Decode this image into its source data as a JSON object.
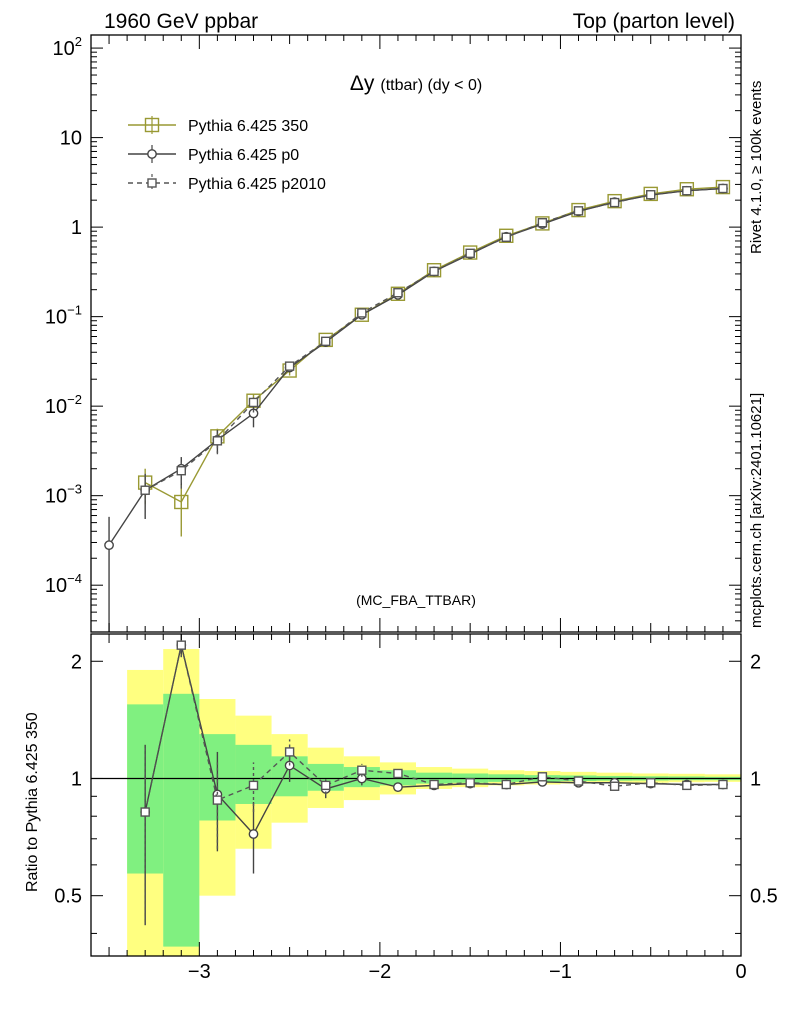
{
  "header": {
    "left": "1960 GeV ppbar",
    "right": "Top (parton level)"
  },
  "side_labels": {
    "rivet": "Rivet 4.1.0, ≥ 100k events",
    "mcplots": "mcplots.cern.ch [arXiv:2401.10621]"
  },
  "chart_data": [
    {
      "type": "line",
      "panel": "main",
      "title_symbol": "Δy",
      "title_rest": "(ttbar) (dy < 0)",
      "watermark": "(MC_FBA_TTBAR)",
      "yscale": "log",
      "xlim": [
        -3.6,
        0.0
      ],
      "ylim": [
        3e-05,
        140
      ],
      "y_ticks": [
        {
          "label": "10",
          "sup": "2"
        },
        {
          "label": "10",
          "sup": ""
        },
        {
          "label": "1",
          "sup": ""
        },
        {
          "label": "10",
          "sup": "−1"
        },
        {
          "label": "10",
          "sup": "−2"
        },
        {
          "label": "10",
          "sup": "−3"
        },
        {
          "label": "10",
          "sup": "−4"
        }
      ],
      "y_tick_values": [
        100,
        10,
        1,
        0.1,
        0.01,
        0.001,
        0.0001
      ],
      "legend_position": "top-left",
      "series": [
        {
          "name": "Pythia 6.425 350",
          "color": "#999933",
          "marker": "square-large",
          "dash": "solid",
          "x": [
            -3.3,
            -3.1,
            -2.9,
            -2.7,
            -2.5,
            -2.3,
            -2.1,
            -1.9,
            -1.7,
            -1.5,
            -1.3,
            -1.1,
            -0.9,
            -0.7,
            -0.5,
            -0.3,
            -0.1
          ],
          "y": [
            0.0014,
            0.00085,
            0.0046,
            0.0115,
            0.025,
            0.055,
            0.105,
            0.18,
            0.33,
            0.52,
            0.8,
            1.1,
            1.55,
            1.95,
            2.35,
            2.65,
            2.8
          ],
          "err": [
            0.0006,
            0.0005,
            0.001,
            0.002,
            0.003,
            0.004,
            0.005,
            0.006,
            0.008,
            0.01,
            0.012,
            0.014,
            0.016,
            0.018,
            0.02,
            0.022,
            0.024
          ]
        },
        {
          "name": "Pythia 6.425 p0",
          "color": "#444444",
          "marker": "circle",
          "dash": "solid",
          "x": [
            -3.5,
            -3.3,
            -3.1,
            -2.9,
            -2.7,
            -2.5,
            -2.3,
            -2.1,
            -1.9,
            -1.7,
            -1.5,
            -1.3,
            -1.1,
            -0.9,
            -0.7,
            -0.5,
            -0.3,
            -0.1
          ],
          "y": [
            0.00028,
            0.00115,
            0.002,
            0.0042,
            0.0083,
            0.027,
            0.052,
            0.105,
            0.175,
            0.32,
            0.5,
            0.78,
            1.08,
            1.5,
            1.9,
            2.28,
            2.55,
            2.7
          ],
          "err": [
            0.0003,
            0.0006,
            0.0007,
            0.0012,
            0.0025,
            0.003,
            0.004,
            0.005,
            0.006,
            0.008,
            0.01,
            0.012,
            0.014,
            0.016,
            0.018,
            0.02,
            0.022,
            0.024
          ]
        },
        {
          "name": "Pythia 6.425 p2010",
          "color": "#555555",
          "marker": "square-small",
          "dash": "dashed",
          "x": [
            -3.3,
            -3.1,
            -2.9,
            -2.7,
            -2.5,
            -2.3,
            -2.1,
            -1.9,
            -1.7,
            -1.5,
            -1.3,
            -1.1,
            -0.9,
            -0.7,
            -0.5,
            -0.3,
            -0.1
          ],
          "y": [
            0.00115,
            0.0019,
            0.0041,
            0.011,
            0.028,
            0.053,
            0.11,
            0.185,
            0.32,
            0.51,
            0.77,
            1.12,
            1.52,
            1.88,
            2.3,
            2.55,
            2.7
          ],
          "err": [
            0.0006,
            0.0007,
            0.0012,
            0.0025,
            0.003,
            0.004,
            0.005,
            0.006,
            0.008,
            0.01,
            0.012,
            0.014,
            0.016,
            0.018,
            0.02,
            0.022,
            0.024
          ]
        }
      ]
    },
    {
      "type": "line",
      "panel": "ratio",
      "ylabel": "Ratio to Pythia 6.425 350",
      "yscale": "log",
      "xlim": [
        -3.6,
        0.0
      ],
      "ylim": [
        0.35,
        2.35
      ],
      "y_ticks": [
        "2",
        "1",
        "0.5"
      ],
      "y_tick_values": [
        2,
        1,
        0.5
      ],
      "x_ticks": [
        "−3",
        "−2",
        "−1",
        "0"
      ],
      "x_tick_values": [
        -3,
        -2,
        -1,
        0
      ],
      "bands": {
        "x_lo": [
          -3.4,
          -3.2,
          -3.0,
          -2.8,
          -2.6,
          -2.4,
          -2.2,
          -2.0,
          -1.8,
          -1.6,
          -1.4,
          -1.2,
          -1.0,
          -0.8,
          -0.6,
          -0.4,
          -0.2
        ],
        "x_hi": [
          -3.2,
          -3.0,
          -2.8,
          -2.6,
          -2.4,
          -2.2,
          -2.0,
          -1.8,
          -1.6,
          -1.4,
          -1.2,
          -1.0,
          -0.8,
          -0.6,
          -0.4,
          -0.2,
          0.0
        ],
        "yellow_lo": [
          0.2,
          0.2,
          0.5,
          0.66,
          0.77,
          0.84,
          0.88,
          0.91,
          0.94,
          0.95,
          0.96,
          0.965,
          0.97,
          0.975,
          0.975,
          0.978,
          0.98
        ],
        "yellow_hi": [
          1.9,
          2.15,
          1.6,
          1.45,
          1.3,
          1.2,
          1.14,
          1.1,
          1.07,
          1.06,
          1.05,
          1.045,
          1.04,
          1.035,
          1.03,
          1.028,
          1.025
        ],
        "green_lo": [
          0.57,
          0.37,
          0.78,
          0.86,
          0.9,
          0.93,
          0.95,
          0.96,
          0.97,
          0.975,
          0.98,
          0.982,
          0.985,
          0.987,
          0.988,
          0.99,
          0.99
        ],
        "green_hi": [
          1.55,
          1.65,
          1.3,
          1.22,
          1.14,
          1.09,
          1.07,
          1.05,
          1.035,
          1.03,
          1.025,
          1.02,
          1.018,
          1.015,
          1.013,
          1.012,
          1.01
        ]
      },
      "series": [
        {
          "name": "Pythia 6.425 p0",
          "color": "#444444",
          "marker": "circle",
          "dash": "solid",
          "x": [
            -3.3,
            -3.1,
            -2.9,
            -2.7,
            -2.5,
            -2.3,
            -2.1,
            -1.9,
            -1.7,
            -1.5,
            -1.3,
            -1.1,
            -0.9,
            -0.7,
            -0.5,
            -0.3,
            -0.1
          ],
          "y": [
            0.82,
            2.2,
            0.91,
            0.72,
            1.08,
            0.94,
            1.0,
            0.95,
            0.96,
            0.97,
            0.965,
            0.98,
            0.975,
            0.975,
            0.97,
            0.965,
            0.965
          ],
          "err": [
            0.4,
            0.15,
            0.26,
            0.15,
            0.1,
            0.05,
            0.04,
            0.02,
            0.015,
            0.012,
            0.01,
            0.01,
            0.01,
            0.01,
            0.01,
            0.01,
            0.01
          ]
        },
        {
          "name": "Pythia 6.425 p2010",
          "color": "#555555",
          "marker": "square-small",
          "dash": "dashed",
          "x": [
            -3.3,
            -3.1,
            -2.9,
            -2.7,
            -2.5,
            -2.3,
            -2.1,
            -1.9,
            -1.7,
            -1.5,
            -1.3,
            -1.1,
            -0.9,
            -0.7,
            -0.5,
            -0.3,
            -0.1
          ],
          "y": [
            0.82,
            2.2,
            0.88,
            0.96,
            1.17,
            0.96,
            1.05,
            1.03,
            0.965,
            0.975,
            0.965,
            1.01,
            0.985,
            0.955,
            0.975,
            0.96,
            0.965
          ],
          "err": [
            0.4,
            0.15,
            0.22,
            0.14,
            0.09,
            0.05,
            0.04,
            0.02,
            0.015,
            0.012,
            0.01,
            0.01,
            0.01,
            0.01,
            0.01,
            0.01,
            0.01
          ]
        }
      ]
    }
  ]
}
